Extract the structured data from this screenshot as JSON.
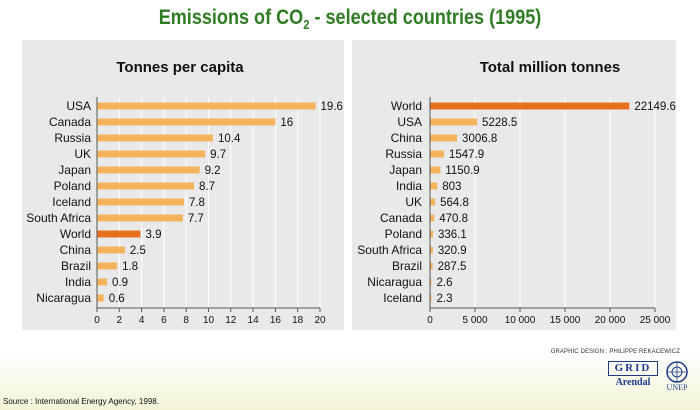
{
  "page": {
    "title_prefix": "Emissions of CO",
    "title_sub": "2",
    "title_suffix": " - selected countries (1995)",
    "credit": "GRAPHIC DESIGN : PHILIPPE REKACEWICZ",
    "source": "Source : International Energy Agency, 1998.",
    "logo_grid": "GRID",
    "logo_arendal": "Arendal",
    "logo_unep": "UNEP"
  },
  "colors": {
    "bar": "#f4b25c",
    "highlight": "#e8711f",
    "title": "#2e7d23"
  },
  "chart_data": [
    {
      "type": "bar",
      "orientation": "horizontal",
      "title": "Tonnes per capita",
      "categories": [
        "USA",
        "Canada",
        "Russia",
        "UK",
        "Japan",
        "Poland",
        "Iceland",
        "South Africa",
        "World",
        "China",
        "Brazil",
        "India",
        "Nicaragua"
      ],
      "values": [
        19.6,
        16,
        10.4,
        9.7,
        9.2,
        8.7,
        7.8,
        7.7,
        3.9,
        2.5,
        1.8,
        0.9,
        0.6
      ],
      "value_labels": [
        "19.6",
        "16",
        "10.4",
        "9.7",
        "9.2",
        "8.7",
        "7.8",
        "7.7",
        "3.9",
        "2.5",
        "1.8",
        "0.9",
        "0.6"
      ],
      "highlight": "World",
      "xlim": [
        0,
        20
      ],
      "ticks": [
        0,
        2,
        4,
        6,
        8,
        10,
        12,
        14,
        16,
        18,
        20
      ],
      "tick_labels": [
        "0",
        "2",
        "4",
        "6",
        "8",
        "10",
        "12",
        "14",
        "16",
        "18",
        "20"
      ]
    },
    {
      "type": "bar",
      "orientation": "horizontal",
      "title": "Total million tonnes",
      "categories": [
        "World",
        "USA",
        "China",
        "Russia",
        "Japan",
        "India",
        "UK",
        "Canada",
        "Poland",
        "South Africa",
        "Brazil",
        "Nicaragua",
        "Iceland"
      ],
      "values": [
        22149.6,
        5228.5,
        3006.8,
        1547.9,
        1150.9,
        803,
        564.8,
        470.8,
        336.1,
        320.9,
        287.5,
        2.6,
        2.3
      ],
      "value_labels": [
        "22149.6",
        "5228.5",
        "3006.8",
        "1547.9",
        "1150.9",
        "803",
        "564.8",
        "470.8",
        "336.1",
        "320.9",
        "287.5",
        "2.6",
        "2.3"
      ],
      "highlight": "World",
      "xlim": [
        0,
        25000
      ],
      "ticks": [
        0,
        5000,
        10000,
        15000,
        20000,
        25000
      ],
      "tick_labels": [
        "0",
        "5 000",
        "10 000",
        "15 000",
        "20 000",
        "25 000"
      ]
    }
  ]
}
